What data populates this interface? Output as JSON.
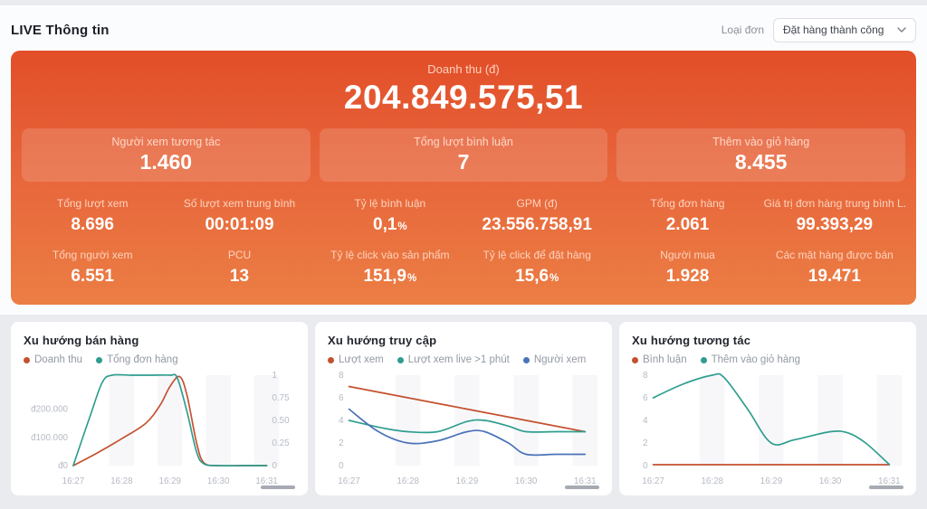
{
  "header": {
    "title": "LIVE Thông tin",
    "filter_label": "Loại đơn",
    "filter_value": "Đặt hàng thành công"
  },
  "summary": {
    "revenue_label": "Doanh thu (đ)",
    "revenue_value": "204.849.575,51",
    "highlight_cards": [
      {
        "label": "Người xem tương tác",
        "value": "1.460"
      },
      {
        "label": "Tổng lượt bình luận",
        "value": "7"
      },
      {
        "label": "Thêm vào giỏ hàng",
        "value": "8.455"
      }
    ],
    "metric_groups": [
      {
        "metrics": [
          {
            "label": "Tổng lượt xem",
            "value": "8.696"
          },
          {
            "label": "Số lượt xem trung bình",
            "value": "00:01:09"
          },
          {
            "label": "Tổng người xem",
            "value": "6.551"
          },
          {
            "label": "PCU",
            "value": "13"
          }
        ]
      },
      {
        "metrics": [
          {
            "label": "Tỷ lệ bình luận",
            "value": "0,1",
            "suffix": "%"
          },
          {
            "label": "GPM (đ)",
            "value": "23.556.758,91"
          },
          {
            "label": "Tỷ lệ click vào sản phẩm",
            "value": "151,9",
            "suffix": "%"
          },
          {
            "label": "Tỷ lệ click để đặt hàng",
            "value": "15,6",
            "suffix": "%"
          }
        ]
      },
      {
        "metrics": [
          {
            "label": "Tổng đơn hàng",
            "value": "2.061"
          },
          {
            "label": "Giá trị đơn hàng trung bình L..",
            "value": "99.393,29"
          },
          {
            "label": "Người mua",
            "value": "1.928"
          },
          {
            "label": "Các mặt hàng được bán",
            "value": "19.471"
          }
        ]
      }
    ]
  },
  "colors": {
    "brand_orange_top": "#e24e28",
    "brand_orange_bottom": "#ec7e44",
    "series_red": "#c4512f",
    "series_teal": "#2f9d8e",
    "series_blue": "#4a72b8"
  },
  "chart_data": [
    {
      "type": "line",
      "title": "Xu hướng bán hàng",
      "x_ticks": [
        "16:27",
        "16:28",
        "16:29",
        "16:30",
        "16:31"
      ],
      "y_left": {
        "max": 320000,
        "ticks": [
          {
            "label": "đ200.000",
            "v": 200000
          },
          {
            "label": "đ100.000",
            "v": 100000
          },
          {
            "label": "đ0",
            "v": 0
          }
        ]
      },
      "y_right": {
        "max": 1,
        "ticks": [
          {
            "label": "1",
            "v": 1
          },
          {
            "label": "0.75",
            "v": 0.75
          },
          {
            "label": "0.50",
            "v": 0.5
          },
          {
            "label": "0.25",
            "v": 0.25
          },
          {
            "label": "0",
            "v": 0
          }
        ]
      },
      "series": [
        {
          "name": "Doanh thu",
          "color": "#c4512f",
          "axis": "left",
          "points": [
            [
              0,
              0
            ],
            [
              0.5,
              45000
            ],
            [
              1,
              95000
            ],
            [
              1.5,
              150000
            ],
            [
              1.8,
              215000
            ],
            [
              2.0,
              280000
            ],
            [
              2.2,
              315000
            ],
            [
              2.35,
              250000
            ],
            [
              2.55,
              80000
            ],
            [
              2.7,
              10000
            ],
            [
              3,
              0
            ],
            [
              3.5,
              0
            ],
            [
              4,
              0
            ]
          ]
        },
        {
          "name": "Tổng đơn hàng",
          "color": "#2f9d8e",
          "axis": "right",
          "points": [
            [
              0,
              0
            ],
            [
              0.35,
              0.55
            ],
            [
              0.6,
              0.92
            ],
            [
              0.8,
              1
            ],
            [
              1.2,
              1
            ],
            [
              1.6,
              1
            ],
            [
              2.0,
              1
            ],
            [
              2.15,
              0.97
            ],
            [
              2.35,
              0.6
            ],
            [
              2.55,
              0.15
            ],
            [
              2.7,
              0.02
            ],
            [
              3,
              0
            ],
            [
              3.5,
              0
            ],
            [
              4,
              0
            ]
          ]
        }
      ]
    },
    {
      "type": "line",
      "title": "Xu hướng truy cập",
      "x_ticks": [
        "16:27",
        "16:28",
        "16:29",
        "16:30",
        "16:31"
      ],
      "y_left": {
        "max": 8,
        "ticks": [
          {
            "label": "8",
            "v": 8
          },
          {
            "label": "6",
            "v": 6
          },
          {
            "label": "4",
            "v": 4
          },
          {
            "label": "2",
            "v": 2
          },
          {
            "label": "0",
            "v": 0
          }
        ]
      },
      "series": [
        {
          "name": "Lượt xem",
          "color": "#c4512f",
          "axis": "left",
          "points": [
            [
              0,
              7
            ],
            [
              1,
              6
            ],
            [
              2,
              5
            ],
            [
              3,
              4
            ],
            [
              4,
              3
            ]
          ]
        },
        {
          "name": "Lượt xem live >1 phút",
          "color": "#2f9d8e",
          "axis": "left",
          "points": [
            [
              0,
              4
            ],
            [
              0.6,
              3.3
            ],
            [
              1,
              3
            ],
            [
              1.5,
              3
            ],
            [
              2,
              3.9
            ],
            [
              2.3,
              4
            ],
            [
              2.7,
              3.5
            ],
            [
              3,
              3
            ],
            [
              3.5,
              3
            ],
            [
              4,
              3
            ]
          ]
        },
        {
          "name": "Người xem",
          "color": "#4a72b8",
          "axis": "left",
          "points": [
            [
              0,
              5
            ],
            [
              0.5,
              3
            ],
            [
              1,
              2
            ],
            [
              1.5,
              2.2
            ],
            [
              2,
              3
            ],
            [
              2.3,
              3
            ],
            [
              2.7,
              2
            ],
            [
              3,
              1
            ],
            [
              3.5,
              1
            ],
            [
              4,
              1
            ]
          ]
        }
      ]
    },
    {
      "type": "line",
      "title": "Xu hướng tương tác",
      "x_ticks": [
        "16:27",
        "16:28",
        "16:29",
        "16:30",
        "16:31"
      ],
      "y_left": {
        "max": 8,
        "ticks": [
          {
            "label": "8",
            "v": 8
          },
          {
            "label": "6",
            "v": 6
          },
          {
            "label": "4",
            "v": 4
          },
          {
            "label": "2",
            "v": 2
          },
          {
            "label": "0",
            "v": 0
          }
        ]
      },
      "series": [
        {
          "name": "Bình luận",
          "color": "#c4512f",
          "axis": "left",
          "points": [
            [
              0,
              0.08
            ],
            [
              1,
              0.08
            ],
            [
              2,
              0.08
            ],
            [
              3,
              0.08
            ],
            [
              4,
              0.08
            ]
          ]
        },
        {
          "name": "Thêm vào giỏ hàng",
          "color": "#2f9d8e",
          "axis": "left",
          "points": [
            [
              0,
              6
            ],
            [
              0.5,
              7.2
            ],
            [
              1,
              8
            ],
            [
              1.2,
              7.8
            ],
            [
              1.6,
              5
            ],
            [
              2,
              2
            ],
            [
              2.4,
              2.3
            ],
            [
              3,
              3
            ],
            [
              3.3,
              2.9
            ],
            [
              3.6,
              2
            ],
            [
              4,
              0.1
            ]
          ]
        }
      ]
    }
  ]
}
